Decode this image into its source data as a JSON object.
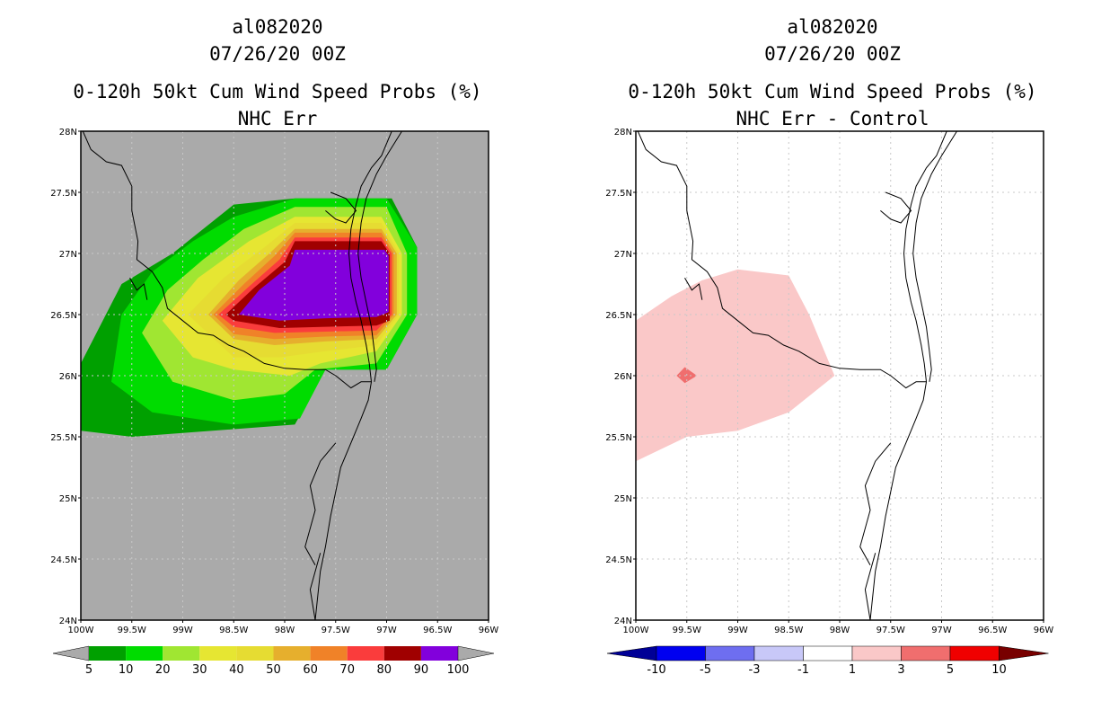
{
  "left_panel": {
    "title_line1": "al082020",
    "title_line2": "07/26/20 00Z",
    "title_line3": "0-120h 50kt Cum Wind Speed Probs (%)",
    "title_line4": "NHC Err",
    "background_color": "#aaaaaa",
    "colorbar": {
      "labels": [
        "5",
        "10",
        "20",
        "30",
        "40",
        "50",
        "60",
        "70",
        "80",
        "90",
        "100"
      ],
      "colors": [
        "#00a000",
        "#00dc00",
        "#a0e632",
        "#e6e632",
        "#e6dc32",
        "#e6af2d",
        "#f08228",
        "#fa3c3c",
        "#a00000",
        "#8200dc"
      ]
    }
  },
  "right_panel": {
    "title_line1": "al082020",
    "title_line2": "07/26/20 00Z",
    "title_line3": "0-120h 50kt Cum Wind Speed Probs (%)",
    "title_line4": "NHC Err - Control",
    "background_color": "#ffffff",
    "colorbar": {
      "labels": [
        "-10",
        "-5",
        "-3",
        "-1",
        "1",
        "3",
        "5",
        "10"
      ],
      "colors": [
        "#000096",
        "#0000f0",
        "#6e6ef0",
        "#c8c8f8",
        "#ffffff",
        "#fac8c8",
        "#f06e6e",
        "#f00000",
        "#780000"
      ]
    }
  },
  "axes": {
    "lon_labels": [
      "100W",
      "99.5W",
      "99W",
      "98.5W",
      "98W",
      "97.5W",
      "97W",
      "96.5W",
      "96W"
    ],
    "lat_labels": [
      "28N",
      "27.5N",
      "27N",
      "26.5N",
      "26N",
      "25.5N",
      "25N",
      "24.5N",
      "24N"
    ]
  },
  "map_data": {
    "coast_color": "#000000",
    "grid_color": "#c8c8c8",
    "prob_contours_left": [
      {
        "level": "5",
        "color": "#00a000",
        "polygon": [
          [
            -100,
            25.55
          ],
          [
            -100,
            26.1
          ],
          [
            -99.6,
            26.75
          ],
          [
            -99.1,
            27.0
          ],
          [
            -98.5,
            27.4
          ],
          [
            -97.9,
            27.45
          ],
          [
            -97.2,
            27.45
          ],
          [
            -96.95,
            27.45
          ],
          [
            -96.7,
            27.05
          ],
          [
            -96.7,
            26.5
          ],
          [
            -97.0,
            26.05
          ],
          [
            -97.6,
            26.05
          ],
          [
            -97.9,
            25.6
          ],
          [
            -99.5,
            25.5
          ]
        ]
      },
      {
        "level": "10",
        "color": "#00dc00",
        "polygon": [
          [
            -99.7,
            25.95
          ],
          [
            -99.6,
            26.5
          ],
          [
            -99.3,
            26.85
          ],
          [
            -98.9,
            27.1
          ],
          [
            -98.5,
            27.3
          ],
          [
            -97.9,
            27.45
          ],
          [
            -97.0,
            27.45
          ],
          [
            -96.7,
            27.05
          ],
          [
            -96.7,
            26.5
          ],
          [
            -97.0,
            26.05
          ],
          [
            -97.6,
            26.05
          ],
          [
            -97.85,
            25.65
          ],
          [
            -98.5,
            25.6
          ],
          [
            -99.3,
            25.7
          ]
        ]
      },
      {
        "level": "20",
        "color": "#a0e632",
        "polygon": [
          [
            -99.4,
            26.35
          ],
          [
            -99.15,
            26.7
          ],
          [
            -98.8,
            26.95
          ],
          [
            -98.4,
            27.2
          ],
          [
            -97.9,
            27.38
          ],
          [
            -97.0,
            27.38
          ],
          [
            -96.8,
            27.0
          ],
          [
            -96.8,
            26.5
          ],
          [
            -97.1,
            26.1
          ],
          [
            -97.7,
            26.05
          ],
          [
            -98.0,
            25.85
          ],
          [
            -98.5,
            25.8
          ],
          [
            -99.1,
            25.95
          ]
        ]
      },
      {
        "level": "30",
        "color": "#e6e632",
        "polygon": [
          [
            -99.2,
            26.45
          ],
          [
            -98.85,
            26.8
          ],
          [
            -98.35,
            27.1
          ],
          [
            -97.9,
            27.3
          ],
          [
            -97.05,
            27.3
          ],
          [
            -96.85,
            27.0
          ],
          [
            -96.85,
            26.5
          ],
          [
            -97.1,
            26.2
          ],
          [
            -97.65,
            26.1
          ],
          [
            -97.95,
            26.0
          ],
          [
            -98.5,
            26.05
          ],
          [
            -98.9,
            26.15
          ]
        ]
      },
      {
        "level": "40",
        "color": "#e6dc32",
        "polygon": [
          [
            -98.95,
            26.5
          ],
          [
            -98.6,
            26.8
          ],
          [
            -98.2,
            27.05
          ],
          [
            -97.9,
            27.25
          ],
          [
            -97.05,
            27.25
          ],
          [
            -96.88,
            27.0
          ],
          [
            -96.88,
            26.5
          ],
          [
            -97.1,
            26.25
          ],
          [
            -97.6,
            26.2
          ],
          [
            -98.05,
            26.15
          ],
          [
            -98.5,
            26.15
          ]
        ]
      },
      {
        "level": "50",
        "color": "#e6af2d",
        "polygon": [
          [
            -98.75,
            26.5
          ],
          [
            -98.45,
            26.78
          ],
          [
            -98.15,
            27.0
          ],
          [
            -97.9,
            27.2
          ],
          [
            -97.05,
            27.2
          ],
          [
            -96.9,
            27.0
          ],
          [
            -96.9,
            26.5
          ],
          [
            -97.1,
            26.3
          ],
          [
            -97.6,
            26.28
          ],
          [
            -98.1,
            26.25
          ],
          [
            -98.5,
            26.3
          ]
        ]
      },
      {
        "level": "60",
        "color": "#f08228",
        "polygon": [
          [
            -98.7,
            26.5
          ],
          [
            -98.4,
            26.75
          ],
          [
            -98.1,
            26.98
          ],
          [
            -97.9,
            27.17
          ],
          [
            -97.05,
            27.17
          ],
          [
            -96.93,
            27.0
          ],
          [
            -96.93,
            26.5
          ],
          [
            -97.1,
            26.33
          ],
          [
            -97.6,
            26.32
          ],
          [
            -98.1,
            26.3
          ],
          [
            -98.5,
            26.34
          ]
        ]
      },
      {
        "level": "70",
        "color": "#fa3c3c",
        "polygon": [
          [
            -98.65,
            26.5
          ],
          [
            -98.35,
            26.73
          ],
          [
            -98.05,
            26.95
          ],
          [
            -97.9,
            27.13
          ],
          [
            -97.05,
            27.13
          ],
          [
            -96.95,
            27.0
          ],
          [
            -96.95,
            26.5
          ],
          [
            -97.1,
            26.37
          ],
          [
            -97.6,
            26.36
          ],
          [
            -98.1,
            26.35
          ],
          [
            -98.5,
            26.4
          ]
        ]
      },
      {
        "level": "80",
        "color": "#a00000",
        "polygon": [
          [
            -98.58,
            26.5
          ],
          [
            -98.3,
            26.72
          ],
          [
            -98.0,
            26.93
          ],
          [
            -97.9,
            27.1
          ],
          [
            -97.05,
            27.1
          ],
          [
            -96.97,
            27.0
          ],
          [
            -96.97,
            26.45
          ],
          [
            -97.1,
            26.41
          ],
          [
            -97.6,
            26.4
          ],
          [
            -98.05,
            26.39
          ],
          [
            -98.5,
            26.45
          ]
        ]
      },
      {
        "level": "90",
        "color": "#8200dc",
        "polygon": [
          [
            -98.45,
            26.5
          ],
          [
            -98.25,
            26.7
          ],
          [
            -97.95,
            26.9
          ],
          [
            -97.9,
            27.03
          ],
          [
            -97.02,
            27.03
          ],
          [
            -96.98,
            26.98
          ],
          [
            -96.98,
            26.52
          ],
          [
            -97.1,
            26.48
          ],
          [
            -97.6,
            26.47
          ],
          [
            -98.05,
            26.45
          ]
        ]
      }
    ],
    "diff_contours_right": [
      {
        "level": "1",
        "color": "#fac8c8",
        "polygon": [
          [
            -100,
            25.3
          ],
          [
            -100,
            26.45
          ],
          [
            -99.65,
            26.65
          ],
          [
            -99.35,
            26.78
          ],
          [
            -99.0,
            26.87
          ],
          [
            -98.5,
            26.82
          ],
          [
            -98.3,
            26.5
          ],
          [
            -98.05,
            26.0
          ],
          [
            -98.5,
            25.7
          ],
          [
            -99.0,
            25.55
          ],
          [
            -99.5,
            25.5
          ]
        ]
      },
      {
        "level": "3",
        "color": "#f06e6e",
        "polygon": [
          [
            -99.6,
            26.0
          ],
          [
            -99.52,
            26.07
          ],
          [
            -99.4,
            26.0
          ],
          [
            -99.52,
            25.94
          ]
        ]
      }
    ],
    "coast_lines": [
      [
        [
          -99.98,
          28.0
        ],
        [
          -99.9,
          27.85
        ],
        [
          -99.75,
          27.75
        ],
        [
          -99.6,
          27.72
        ],
        [
          -99.5,
          27.55
        ],
        [
          -99.5,
          27.35
        ],
        [
          -99.44,
          27.1
        ],
        [
          -99.45,
          26.95
        ],
        [
          -99.3,
          26.85
        ],
        [
          -99.2,
          26.72
        ],
        [
          -99.15,
          26.55
        ],
        [
          -99.0,
          26.45
        ],
        [
          -98.85,
          26.35
        ],
        [
          -98.7,
          26.33
        ],
        [
          -98.55,
          26.25
        ],
        [
          -98.4,
          26.2
        ],
        [
          -98.2,
          26.1
        ],
        [
          -98.0,
          26.06
        ],
        [
          -97.8,
          26.05
        ],
        [
          -97.6,
          26.05
        ],
        [
          -97.5,
          26.0
        ],
        [
          -97.35,
          25.9
        ],
        [
          -97.25,
          25.95
        ],
        [
          -97.15,
          25.95
        ]
      ],
      [
        [
          -96.95,
          28.0
        ],
        [
          -97.05,
          27.8
        ],
        [
          -97.15,
          27.7
        ],
        [
          -97.25,
          27.55
        ],
        [
          -97.3,
          27.4
        ],
        [
          -97.35,
          27.2
        ],
        [
          -97.37,
          27.0
        ],
        [
          -97.35,
          26.8
        ],
        [
          -97.3,
          26.6
        ],
        [
          -97.25,
          26.45
        ],
        [
          -97.2,
          26.25
        ],
        [
          -97.17,
          26.1
        ],
        [
          -97.15,
          25.95
        ],
        [
          -97.18,
          25.8
        ],
        [
          -97.25,
          25.65
        ],
        [
          -97.35,
          25.45
        ],
        [
          -97.45,
          25.25
        ],
        [
          -97.5,
          25.05
        ],
        [
          -97.55,
          24.85
        ],
        [
          -97.6,
          24.6
        ],
        [
          -97.65,
          24.4
        ],
        [
          -97.7,
          24.0
        ]
      ],
      [
        [
          -96.85,
          28.0
        ],
        [
          -97.0,
          27.8
        ],
        [
          -97.1,
          27.65
        ],
        [
          -97.2,
          27.45
        ],
        [
          -97.25,
          27.25
        ],
        [
          -97.28,
          27.0
        ],
        [
          -97.25,
          26.8
        ],
        [
          -97.2,
          26.6
        ],
        [
          -97.15,
          26.4
        ],
        [
          -97.12,
          26.2
        ],
        [
          -97.1,
          26.05
        ],
        [
          -97.12,
          25.95
        ]
      ],
      [
        [
          -97.55,
          27.5
        ],
        [
          -97.4,
          27.45
        ],
        [
          -97.3,
          27.35
        ],
        [
          -97.4,
          27.25
        ],
        [
          -97.5,
          27.28
        ],
        [
          -97.6,
          27.35
        ]
      ],
      [
        [
          -97.5,
          25.45
        ],
        [
          -97.65,
          25.3
        ],
        [
          -97.75,
          25.1
        ],
        [
          -97.7,
          24.9
        ],
        [
          -97.8,
          24.6
        ],
        [
          -97.7,
          24.45
        ]
      ],
      [
        [
          -99.52,
          26.8
        ],
        [
          -99.45,
          26.7
        ],
        [
          -99.38,
          26.75
        ],
        [
          -99.35,
          26.62
        ]
      ],
      [
        [
          -97.7,
          24.0
        ],
        [
          -97.75,
          24.25
        ],
        [
          -97.65,
          24.55
        ]
      ]
    ]
  }
}
